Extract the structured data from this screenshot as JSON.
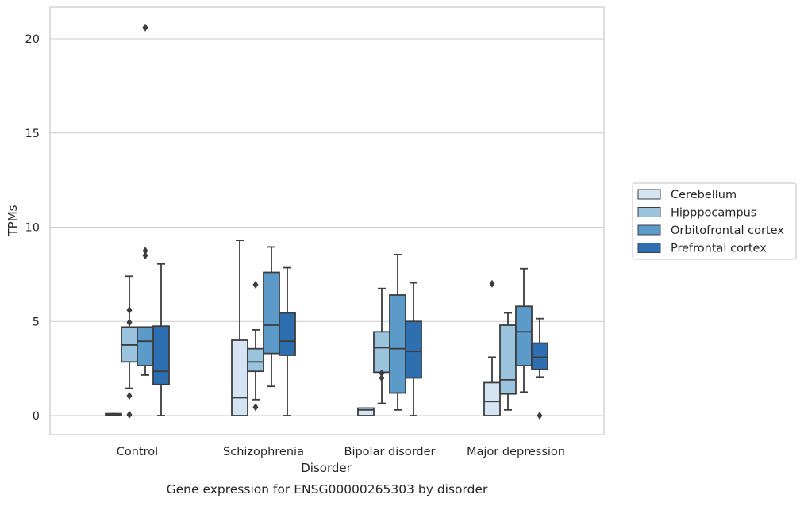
{
  "chart_data": {
    "type": "box",
    "caption": "Gene expression for ENSG00000265303 by disorder",
    "xlabel": "Disorder",
    "ylabel": "TPMs",
    "ylim": [
      -1,
      21.7
    ],
    "yticks": [
      0,
      5,
      10,
      15,
      20
    ],
    "grid": "horizontal",
    "legend_placement": "right",
    "categories": [
      "Control",
      "Schizophrenia",
      "Bipolar disorder",
      "Major depression"
    ],
    "series": [
      {
        "name": "Cerebellum",
        "color": "#d4e4f2",
        "boxes": [
          {
            "whisker_low": 0,
            "q1": 0,
            "median": 0.05,
            "q3": 0.1,
            "whisker_high": 0.1,
            "outliers": []
          },
          {
            "whisker_low": 0,
            "q1": 0,
            "median": 0.95,
            "q3": 4.0,
            "whisker_high": 9.3,
            "outliers": []
          },
          {
            "whisker_low": 0,
            "q1": 0,
            "median": 0.3,
            "q3": 0.4,
            "whisker_high": 0.4,
            "outliers": []
          },
          {
            "whisker_low": 0,
            "q1": 0,
            "median": 0.75,
            "q3": 1.75,
            "whisker_high": 3.1,
            "outliers": [
              7.0
            ]
          }
        ]
      },
      {
        "name": "Hipppocampus",
        "color": "#9ac4de",
        "boxes": [
          {
            "whisker_low": 1.45,
            "q1": 2.85,
            "median": 3.75,
            "q3": 4.7,
            "whisker_high": 7.4,
            "outliers": [
              0.05,
              1.05,
              4.95,
              5.6
            ]
          },
          {
            "whisker_low": 0.85,
            "q1": 2.35,
            "median": 2.85,
            "q3": 3.55,
            "whisker_high": 4.55,
            "outliers": [
              0.45,
              6.95
            ]
          },
          {
            "whisker_low": 0.65,
            "q1": 2.3,
            "median": 3.6,
            "q3": 4.45,
            "whisker_high": 6.75,
            "outliers": [
              2.0,
              2.25
            ]
          },
          {
            "whisker_low": 0.3,
            "q1": 1.15,
            "median": 1.9,
            "q3": 4.8,
            "whisker_high": 5.45,
            "outliers": []
          }
        ]
      },
      {
        "name": "Orbitofrontal cortex",
        "color": "#5b9ac9",
        "boxes": [
          {
            "whisker_low": 2.15,
            "q1": 2.65,
            "median": 3.95,
            "q3": 4.7,
            "whisker_high": 4.7,
            "outliers": [
              8.5,
              8.75,
              20.6
            ]
          },
          {
            "whisker_low": 1.55,
            "q1": 3.3,
            "median": 4.8,
            "q3": 7.6,
            "whisker_high": 8.95,
            "outliers": []
          },
          {
            "whisker_low": 0.3,
            "q1": 1.2,
            "median": 3.55,
            "q3": 6.4,
            "whisker_high": 8.55,
            "outliers": []
          },
          {
            "whisker_low": 1.25,
            "q1": 2.65,
            "median": 4.45,
            "q3": 5.8,
            "whisker_high": 7.8,
            "outliers": []
          }
        ]
      },
      {
        "name": "Prefrontal cortex",
        "color": "#2d6fb0",
        "boxes": [
          {
            "whisker_low": 0,
            "q1": 1.65,
            "median": 2.35,
            "q3": 4.75,
            "whisker_high": 8.05,
            "outliers": []
          },
          {
            "whisker_low": 0,
            "q1": 3.2,
            "median": 3.95,
            "q3": 5.45,
            "whisker_high": 7.85,
            "outliers": []
          },
          {
            "whisker_low": 0,
            "q1": 2.0,
            "median": 3.4,
            "q3": 5.0,
            "whisker_high": 7.05,
            "outliers": []
          },
          {
            "whisker_low": 2.05,
            "q1": 2.45,
            "median": 3.1,
            "q3": 3.85,
            "whisker_high": 5.15,
            "outliers": [
              0.0
            ]
          }
        ]
      }
    ]
  }
}
